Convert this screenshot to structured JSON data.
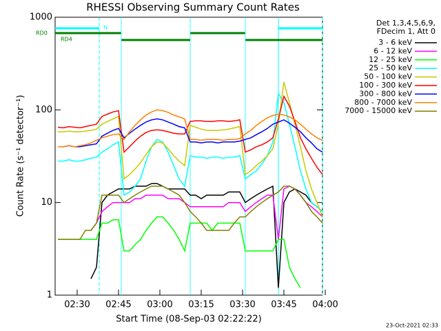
{
  "chart_data": {
    "type": "line",
    "title": "RHESSI Observing Summary Count Rates",
    "xlabel": "Start Time (08-Sep-03 02:22:22)",
    "ylabel": "Count Rate (s⁻¹ detector⁻¹)",
    "legend_title": [
      "Det 1,3,4,5,6,9,",
      "FDecim 1, Att 0"
    ],
    "footer": "23-Oct-2021 02:33",
    "log_y": true,
    "legend": "right",
    "xlim": [
      "02:22",
      "03:59"
    ],
    "xticks": [
      "02:30",
      "02:45",
      "03:00",
      "03:15",
      "03:30",
      "03:45",
      "04:00"
    ],
    "ylim": [
      1,
      1000
    ],
    "yticks": [
      1,
      10,
      100,
      1000
    ],
    "x": [
      "02:23",
      "02:25",
      "02:27",
      "02:29",
      "02:31",
      "02:33",
      "02:35",
      "02:37",
      "02:39",
      "02:41",
      "02:43",
      "02:45",
      "02:47",
      "02:49",
      "02:51",
      "02:53",
      "02:55",
      "02:57",
      "02:59",
      "03:01",
      "03:03",
      "03:05",
      "03:07",
      "03:09",
      "03:11",
      "03:13",
      "03:15",
      "03:17",
      "03:19",
      "03:21",
      "03:23",
      "03:25",
      "03:27",
      "03:29",
      "03:31",
      "03:33",
      "03:35",
      "03:37",
      "03:39",
      "03:41",
      "03:43",
      "03:45",
      "03:47",
      "03:49",
      "03:51",
      "03:53",
      "03:55",
      "03:57",
      "03:59"
    ],
    "series": [
      {
        "name": "3 - 6 keV",
        "color": "#000000",
        "values": [
          null,
          null,
          null,
          null,
          null,
          null,
          1.5,
          2,
          10,
          12,
          13,
          14,
          14,
          14,
          15,
          15,
          15,
          16,
          16,
          15,
          14,
          14,
          14,
          14,
          12,
          12,
          11,
          12,
          12,
          12,
          12,
          13,
          13,
          13,
          10,
          11,
          12,
          13,
          14,
          15,
          1.2,
          10,
          13,
          14,
          13,
          12,
          10,
          9,
          8
        ]
      },
      {
        "name": "6 - 12 keV",
        "color": "#ff00ff",
        "values": [
          null,
          null,
          null,
          null,
          null,
          null,
          5,
          6,
          8,
          9,
          10,
          10,
          10,
          10,
          11,
          11,
          12,
          12,
          12,
          12,
          11,
          11,
          11,
          10,
          9,
          9,
          9,
          9,
          9,
          9,
          9,
          10,
          10,
          10,
          8,
          9,
          10,
          11,
          12,
          12,
          4,
          14,
          15,
          14,
          12,
          10,
          9,
          8,
          7
        ]
      },
      {
        "name": "12 - 25 keV",
        "color": "#00ff00",
        "values": [
          4,
          4,
          4,
          4,
          4,
          4,
          4,
          4,
          6,
          6,
          6.5,
          6.5,
          3,
          3,
          3.5,
          4,
          5,
          6,
          7,
          7,
          6,
          5,
          4,
          3,
          6,
          6,
          6,
          6,
          5,
          6,
          6,
          6,
          6,
          6,
          3,
          3,
          3,
          3,
          3,
          3,
          4,
          4,
          2,
          1.5,
          1.2,
          null,
          null,
          null,
          null
        ]
      },
      {
        "name": "25 - 50 keV",
        "color": "#00ffff",
        "values": [
          28,
          28,
          29,
          28,
          28,
          29,
          30,
          31,
          35,
          38,
          42,
          45,
          12,
          13,
          15,
          18,
          28,
          40,
          48,
          45,
          35,
          25,
          18,
          15,
          32,
          31,
          31,
          30,
          31,
          31,
          30,
          31,
          31,
          32,
          18,
          20,
          22,
          26,
          32,
          45,
          150,
          120,
          70,
          40,
          22,
          14,
          10,
          9,
          8
        ]
      },
      {
        "name": "50 - 100 keV",
        "color": "#c8c800",
        "values": [
          58,
          58,
          59,
          58,
          58,
          59,
          60,
          62,
          70,
          75,
          80,
          85,
          18,
          20,
          23,
          27,
          33,
          40,
          45,
          44,
          38,
          32,
          28,
          25,
          68,
          65,
          62,
          60,
          60,
          60,
          61,
          62,
          64,
          66,
          20,
          22,
          25,
          28,
          32,
          38,
          70,
          200,
          120,
          70,
          40,
          22,
          14,
          10,
          7
        ]
      },
      {
        "name": "100 - 300 keV",
        "color": "#ff0000",
        "values": [
          65,
          64,
          66,
          65,
          64,
          66,
          68,
          70,
          85,
          90,
          95,
          98,
          35,
          40,
          46,
          52,
          57,
          60,
          61,
          60,
          58,
          56,
          55,
          55,
          75,
          76,
          76,
          75,
          75,
          76,
          76,
          75,
          76,
          78,
          35,
          37,
          40,
          42,
          45,
          50,
          80,
          140,
          110,
          75,
          50,
          38,
          30,
          24,
          20
        ]
      },
      {
        "name": "300 - 800 keV",
        "color": "#0000ff",
        "values": [
          40,
          40,
          41,
          40,
          40,
          41,
          42,
          43,
          52,
          56,
          60,
          63,
          50,
          56,
          62,
          68,
          74,
          78,
          80,
          78,
          74,
          70,
          66,
          64,
          45,
          45,
          44,
          45,
          45,
          44,
          45,
          45,
          45,
          46,
          48,
          50,
          54,
          58,
          63,
          70,
          74,
          78,
          72,
          65,
          58,
          50,
          44,
          38,
          35
        ]
      },
      {
        "name": "800 - 7000 keV",
        "color": "#ff8000",
        "values": [
          40,
          40,
          41,
          40,
          41,
          42,
          44,
          47,
          50,
          52,
          54,
          55,
          48,
          58,
          68,
          78,
          88,
          95,
          100,
          98,
          94,
          88,
          84,
          80,
          48,
          48,
          47,
          48,
          48,
          48,
          47,
          48,
          48,
          49,
          55,
          60,
          68,
          75,
          82,
          87,
          90,
          88,
          84,
          78,
          70,
          62,
          55,
          50,
          47
        ]
      },
      {
        "name": "7000 - 15000 keV",
        "color": "#808000",
        "values": [
          4,
          4,
          4,
          4,
          4,
          5,
          5,
          6,
          12,
          12,
          12,
          12,
          10,
          11,
          12,
          13,
          14,
          15,
          15,
          15,
          14,
          13,
          12,
          10,
          8,
          7,
          6,
          5,
          5,
          5,
          5,
          5,
          6,
          7,
          7,
          8,
          9,
          10,
          11,
          12,
          13,
          15,
          15,
          14,
          12,
          10,
          8,
          7,
          6
        ]
      }
    ],
    "flags": [
      {
        "label": "N",
        "color": "#00ffff",
        "spans": [
          [
            "02:22",
            "02:38"
          ],
          [
            "03:43",
            "03:59"
          ]
        ]
      },
      {
        "label": "RD0",
        "color": "#008000",
        "spans": [
          [
            "02:22",
            "02:46"
          ],
          [
            "03:11",
            "03:31"
          ]
        ]
      },
      {
        "label": "RD4",
        "color": "#008000",
        "spans": [
          [
            "02:46",
            "03:11"
          ],
          [
            "03:31",
            "03:59"
          ]
        ]
      }
    ]
  }
}
